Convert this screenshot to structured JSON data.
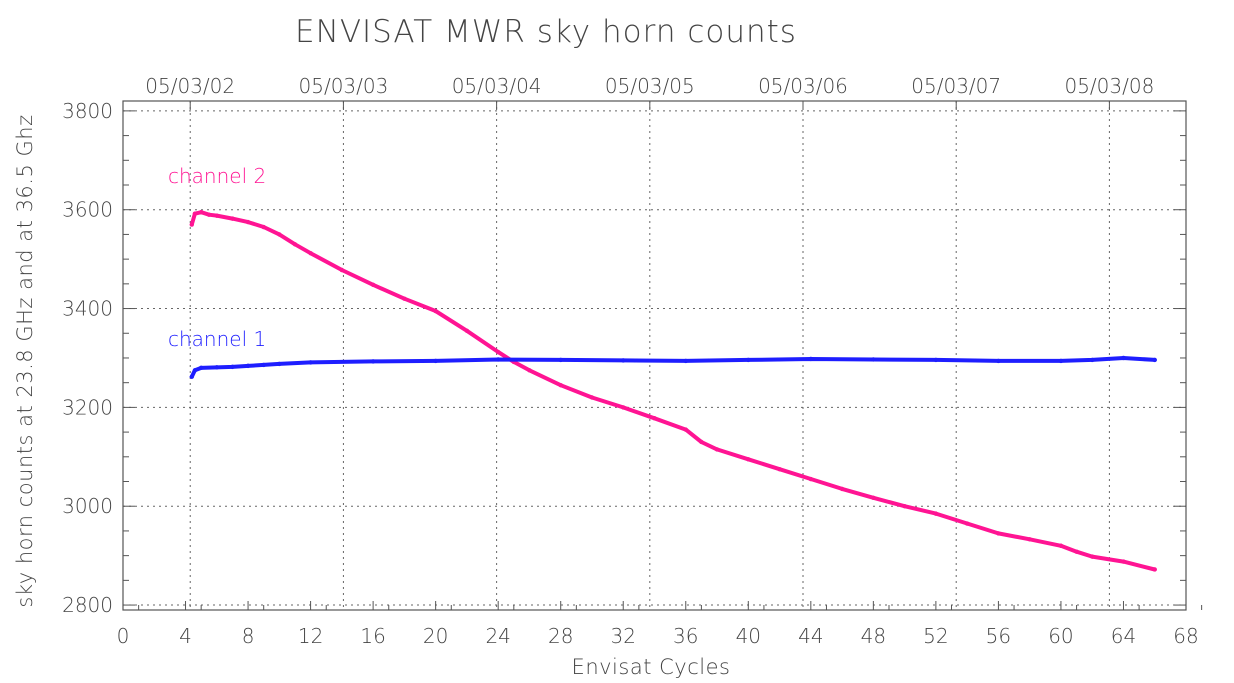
{
  "chart_data": {
    "type": "scatter",
    "title": "ENVISAT MWR sky horn counts",
    "xlabel": "Envisat Cycles",
    "ylabel": "sky horn counts at 23.8 GHz and at 36.5 Ghz",
    "xlim": [
      0,
      68
    ],
    "ylim": [
      2790,
      3820
    ],
    "x_ticks": [
      "0",
      "4",
      "8",
      "12",
      "16",
      "20",
      "24",
      "28",
      "32",
      "36",
      "40",
      "44",
      "48",
      "52",
      "56",
      "60",
      "64",
      "68"
    ],
    "y_ticks": [
      "2800",
      "3000",
      "3200",
      "3400",
      "3600",
      "3800"
    ],
    "top_axis_ticks": [
      "05/03/02",
      "05/03/03",
      "05/03/04",
      "05/03/05",
      "05/03/06",
      "05/03/07",
      "05/03/08"
    ],
    "top_axis_cycles": [
      4.3,
      14.1,
      23.9,
      33.7,
      43.5,
      53.3,
      63.1
    ],
    "grid": true,
    "series": [
      {
        "name": "channel 2",
        "color": "#ff1493",
        "x": [
          4.4,
          4.6,
          5,
          5.5,
          6,
          7,
          8,
          9,
          10,
          11,
          12,
          14,
          16,
          18,
          20,
          22,
          24,
          25,
          26,
          28,
          30,
          32,
          34,
          36,
          37,
          38,
          40,
          42,
          44,
          46,
          48,
          50,
          52,
          54,
          56,
          58,
          60,
          61,
          62,
          64,
          66
        ],
        "y": [
          3570,
          3592,
          3595,
          3590,
          3588,
          3582,
          3575,
          3565,
          3550,
          3530,
          3512,
          3478,
          3448,
          3420,
          3395,
          3355,
          3312,
          3292,
          3275,
          3245,
          3220,
          3200,
          3178,
          3155,
          3130,
          3115,
          3095,
          3075,
          3055,
          3035,
          3017,
          3000,
          2985,
          2965,
          2945,
          2933,
          2920,
          2908,
          2898,
          2888,
          2872
        ]
      },
      {
        "name": "channel 1",
        "color": "#1e1eff",
        "x": [
          4.4,
          4.6,
          5,
          6,
          7,
          8,
          9,
          10,
          12,
          16,
          20,
          24,
          28,
          32,
          36,
          40,
          44,
          48,
          52,
          56,
          60,
          62,
          64,
          66
        ],
        "y": [
          3262,
          3275,
          3280,
          3281,
          3282,
          3284,
          3286,
          3288,
          3291,
          3293,
          3294,
          3297,
          3296,
          3295,
          3294,
          3296,
          3298,
          3297,
          3296,
          3294,
          3294,
          3296,
          3300,
          3296
        ]
      }
    ]
  }
}
